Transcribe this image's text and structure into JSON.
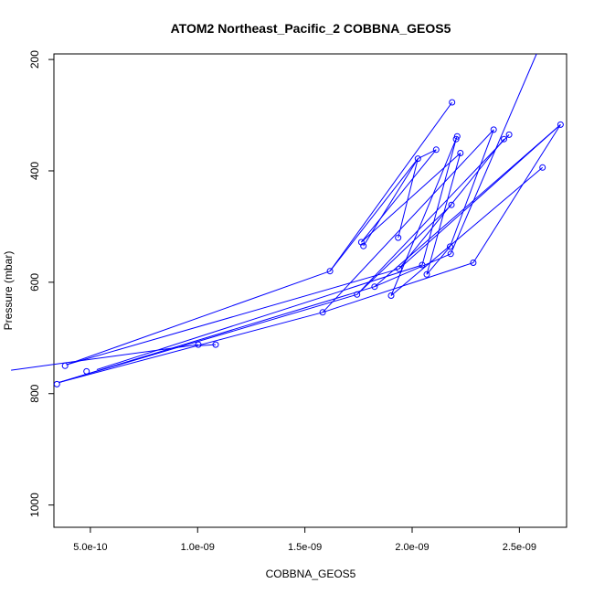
{
  "chart_data": {
    "type": "line",
    "title": "ATOM2 Northeast_Pacific_2 COBBNA_GEOS5",
    "xlabel": "COBBNA_GEOS5",
    "ylabel": "Pressure (mbar)",
    "xlim": [
      3.3e-10,
      2.72e-09
    ],
    "ylim": [
      1040,
      190
    ],
    "y_reversed": true,
    "x_ticks": [
      5e-10,
      1e-09,
      1.5e-09,
      2e-09,
      2.5e-09
    ],
    "x_tick_labels": [
      "5.0e-10",
      "1.0e-09",
      "1.5e-09",
      "2.0e-09",
      "2.5e-09"
    ],
    "y_ticks": [
      200,
      400,
      600,
      800,
      1000
    ],
    "y_tick_labels": [
      "200",
      "400",
      "600",
      "800",
      "1000"
    ],
    "series_color": "#0000ff",
    "points": [
      {
        "x": 2.186e-09,
        "y": 277
      },
      {
        "x": 1.763e-09,
        "y": 528
      },
      {
        "x": 1.935e-09,
        "y": 520
      },
      {
        "x": 2.21e-09,
        "y": 338
      },
      {
        "x": 2.452e-09,
        "y": 335
      },
      {
        "x": 2.38e-09,
        "y": 326
      },
      {
        "x": 2.692e-09,
        "y": 317
      },
      {
        "x": 2.205e-09,
        "y": 343
      },
      {
        "x": 2.112e-09,
        "y": 362
      },
      {
        "x": 2.225e-09,
        "y": 368
      },
      {
        "x": 2.027e-09,
        "y": 378
      },
      {
        "x": 2.428e-09,
        "y": 343
      },
      {
        "x": 2.608e-09,
        "y": 394
      },
      {
        "x": 2.183e-09,
        "y": 461
      },
      {
        "x": 1.773e-09,
        "y": 535
      },
      {
        "x": 2.177e-09,
        "y": 536
      },
      {
        "x": 2.18e-09,
        "y": 549
      },
      {
        "x": 2.285e-09,
        "y": 565
      },
      {
        "x": 2.047e-09,
        "y": 569
      },
      {
        "x": 1.617e-09,
        "y": 580
      },
      {
        "x": 1.939e-09,
        "y": 576
      },
      {
        "x": 2.068e-09,
        "y": 586
      },
      {
        "x": 1.825e-09,
        "y": 608
      },
      {
        "x": 1.743e-09,
        "y": 622
      },
      {
        "x": 1.902e-09,
        "y": 624
      },
      {
        "x": 1.583e-09,
        "y": 654
      },
      {
        "x": 1.003e-09,
        "y": 712
      },
      {
        "x": 1.084e-09,
        "y": 712
      },
      {
        "x": 3.82e-10,
        "y": 750
      },
      {
        "x": 4.82e-10,
        "y": 760
      },
      {
        "x": 3.44e-10,
        "y": 783
      }
    ],
    "segments": [
      [
        0.0,
        0
      ],
      [
        1.3e-10,
        758,
        1.003e-09,
        712
      ],
      [
        3.52e-10,
        780,
        1.583e-09,
        654
      ],
      [
        3.52e-10,
        780,
        1.743e-09,
        622
      ],
      [
        3.52e-10,
        780,
        1.825e-09,
        608
      ],
      [
        3.88e-10,
        748,
        1.939e-09,
        576
      ],
      [
        3.88e-10,
        748,
        1.617e-09,
        580
      ],
      [
        1.01e-09,
        714,
        1.084e-09,
        712
      ],
      [
        5.3e-10,
        757,
        2.047e-09,
        569
      ],
      [
        1.583e-09,
        654,
        2.38e-09,
        326
      ],
      [
        1.583e-09,
        654,
        2.285e-09,
        565
      ],
      [
        1.617e-09,
        580,
        2.186e-09,
        277
      ],
      [
        1.617e-09,
        580,
        2.027e-09,
        378
      ],
      [
        1.743e-09,
        622,
        2.183e-09,
        461
      ],
      [
        1.743e-09,
        622,
        2.452e-09,
        335
      ],
      [
        1.825e-09,
        608,
        2.692e-09,
        317
      ],
      [
        1.825e-09,
        608,
        2.18e-09,
        549
      ],
      [
        1.902e-09,
        624,
        2.21e-09,
        338
      ],
      [
        1.902e-09,
        624,
        2.608e-09,
        394
      ],
      [
        1.939e-09,
        576,
        2.428e-09,
        343
      ],
      [
        1.939e-09,
        576,
        2.692e-09,
        317
      ],
      [
        2.068e-09,
        586,
        2.225e-09,
        368
      ],
      [
        2.068e-09,
        586,
        2.177e-09,
        536
      ],
      [
        2.047e-09,
        569,
        2.205e-09,
        343
      ],
      [
        1.763e-09,
        528,
        2.112e-09,
        362
      ],
      [
        1.773e-09,
        535,
        2.027e-09,
        378
      ],
      [
        1.935e-09,
        520,
        2.027e-09,
        378
      ],
      [
        1.763e-09,
        528,
        2.225e-09,
        368
      ],
      [
        2.177e-09,
        536,
        2.38e-09,
        326
      ],
      [
        2.285e-09,
        565,
        2.692e-09,
        317
      ],
      [
        2.18e-09,
        549,
        2.58e-09,
        190
      ],
      [
        2.112e-09,
        362,
        2.027e-09,
        378
      ]
    ]
  }
}
